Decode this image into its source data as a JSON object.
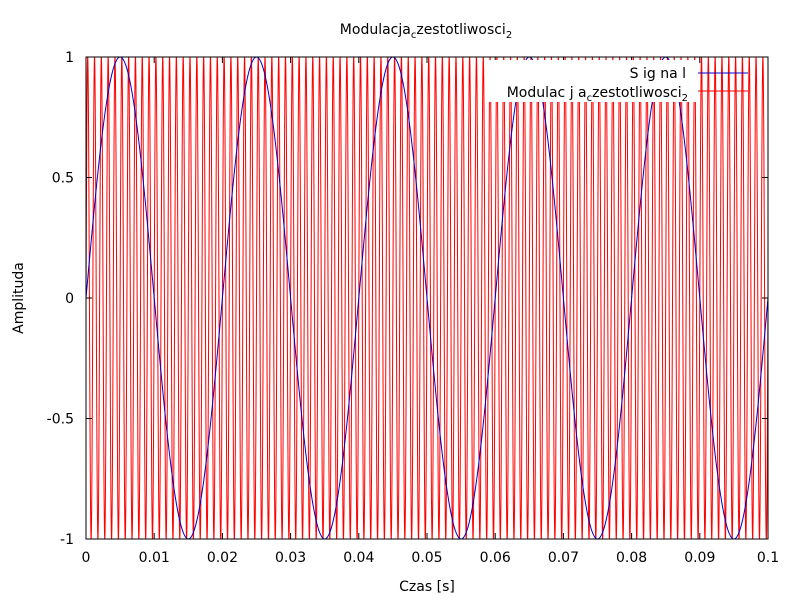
{
  "chart_data": {
    "type": "line",
    "title": {
      "main": "Modulacja",
      "sub1": "c",
      "mid": "zestotliwosci",
      "sub2": "2"
    },
    "xlabel": "Czas [s]",
    "ylabel": "Amplituda",
    "xlim": [
      0,
      0.1
    ],
    "ylim": [
      -1,
      1
    ],
    "x_ticks": [
      "0",
      "0.01",
      "0.02",
      "0.03",
      "0.04",
      "0.05",
      "0.06",
      "0.07",
      "0.08",
      "0.09",
      "0.1"
    ],
    "y_ticks": [
      "1",
      "0.5",
      "0",
      "-0.5",
      "-1"
    ],
    "legend_position": "top-right",
    "series": [
      {
        "name": "Signal",
        "name_display": "S ig na l",
        "color": "#0000cc",
        "function": "sin",
        "amplitude": 1,
        "frequency_hz": 50,
        "x": [
          0,
          0.005,
          0.01,
          0.015,
          0.02,
          0.025,
          0.03,
          0.035,
          0.04,
          0.045,
          0.05,
          0.055,
          0.06,
          0.065,
          0.07,
          0.075,
          0.08,
          0.085,
          0.09,
          0.095,
          0.1
        ],
        "y": [
          0,
          1,
          0,
          -1,
          0,
          1,
          0,
          -1,
          0,
          1,
          0,
          -1,
          0,
          1,
          0,
          -1,
          0,
          1,
          0,
          -1,
          0
        ]
      },
      {
        "name": "Modulacja_czestotliwosci_2",
        "name_display": {
          "a": "Modulac j a",
          "b": "c",
          "c": "zestotliwosci",
          "d": "2"
        },
        "color": "#ff0000",
        "function": "sin",
        "amplitude": 1,
        "frequency_hz": 1000
      }
    ]
  }
}
